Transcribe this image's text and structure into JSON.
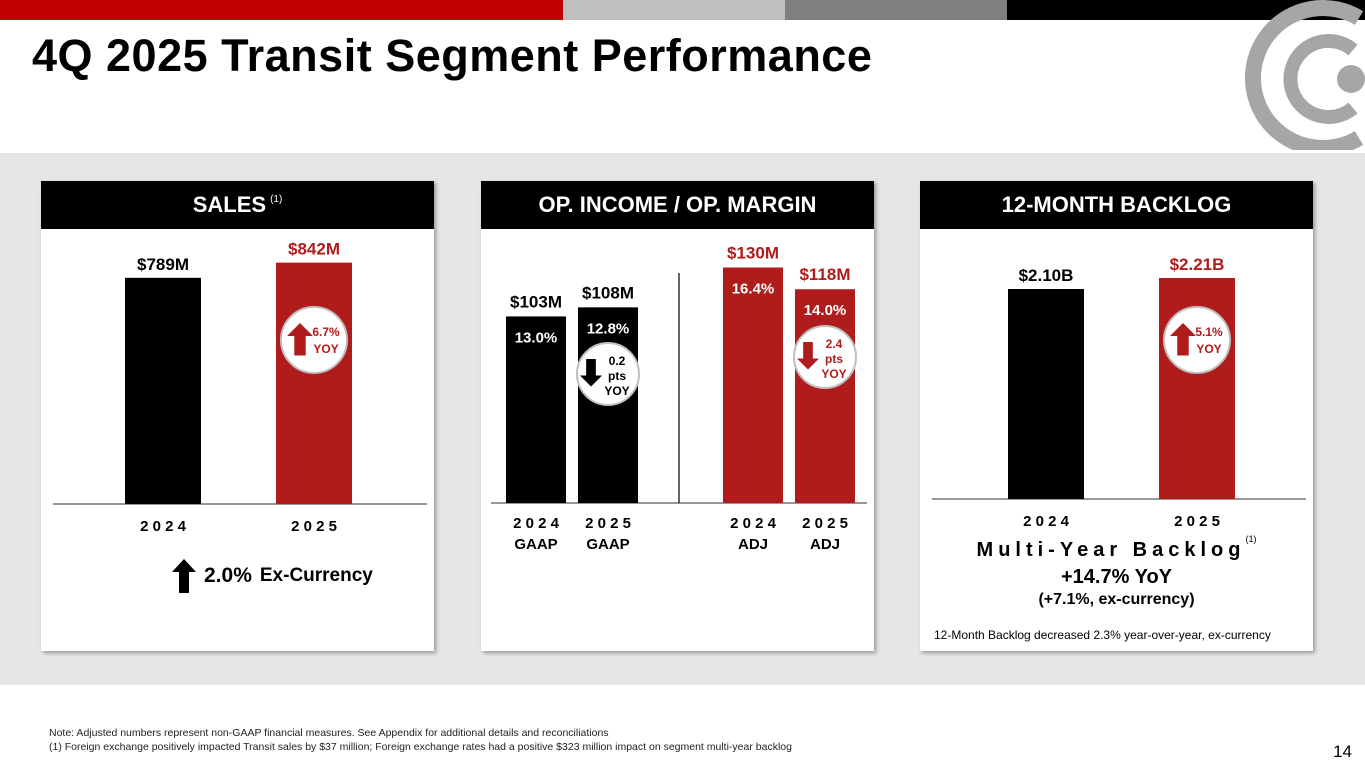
{
  "title": "4Q 2025 Transit Segment Performance",
  "colors": {
    "accent_red": "#b01c1c",
    "bar_black": "#000000",
    "bright_red": "#c00000",
    "gray_light": "#bfbfbf",
    "gray_dark": "#7f7f7f",
    "band": "#e6e6e6"
  },
  "logo": {
    "icon": "circular-arc-logo-icon"
  },
  "sales": {
    "header": "SALES",
    "header_note": "(1)",
    "change_badge": {
      "value": "6.7%",
      "label": "YOY",
      "direction": "up"
    },
    "ex_currency": {
      "value": "2.0%",
      "label": "Ex-Currency",
      "direction": "up"
    }
  },
  "opincome": {
    "header": "OP. INCOME / OP. MARGIN",
    "gaap_badge": {
      "value": "0.2",
      "unit": "pts",
      "label": "YOY",
      "direction": "down"
    },
    "adj_badge": {
      "value": "2.4",
      "unit": "pts",
      "label": "YOY",
      "direction": "down"
    }
  },
  "backlog": {
    "header": "12-MONTH BACKLOG",
    "change_badge": {
      "value": "5.1%",
      "label": "YOY",
      "direction": "up"
    },
    "multi_year_title": "Multi-Year Backlog",
    "multi_year_note": "(1)",
    "multi_year_yoy": "+14.7% YoY",
    "multi_year_ex": "(+7.1%, ex-currency)",
    "note": "12-Month Backlog decreased 2.3% year-over-year, ex-currency"
  },
  "chart_data": [
    {
      "type": "bar",
      "title": "SALES",
      "unit": "$M",
      "categories": [
        "2024",
        "2025"
      ],
      "values": [
        789,
        842
      ],
      "value_labels": [
        "$789M",
        "$842M"
      ],
      "ylim": [
        0,
        900
      ]
    },
    {
      "type": "bar",
      "title": "OP. INCOME / OP. MARGIN",
      "unit": "$M",
      "categories": [
        "2024 GAAP",
        "2025 GAAP",
        "2024 ADJ",
        "2025 ADJ"
      ],
      "category_years": [
        "2024",
        "2025",
        "2024",
        "2025"
      ],
      "category_bases": [
        "GAAP",
        "GAAP",
        "ADJ",
        "ADJ"
      ],
      "values": [
        103,
        108,
        130,
        118
      ],
      "value_labels": [
        "$103M",
        "$108M",
        "$130M",
        "$118M"
      ],
      "margins": [
        "13.0%",
        "12.8%",
        "16.4%",
        "14.0%"
      ],
      "ylim": [
        0,
        138
      ]
    },
    {
      "type": "bar",
      "title": "12-MONTH BACKLOG",
      "unit": "$B",
      "categories": [
        "2024",
        "2025"
      ],
      "values": [
        2.1,
        2.21
      ],
      "value_labels": [
        "$2.10B",
        "$2.21B"
      ],
      "ylim": [
        0,
        2.35
      ]
    }
  ],
  "footnotes": {
    "note": "Note: Adjusted numbers represent non-GAAP financial measures. See Appendix for additional details and reconciliations",
    "fn1": "(1)    Foreign exchange positively impacted Transit sales by $37 million; Foreign exchange rates had a positive $323 million impact on segment multi-year backlog"
  },
  "page_number": "14"
}
